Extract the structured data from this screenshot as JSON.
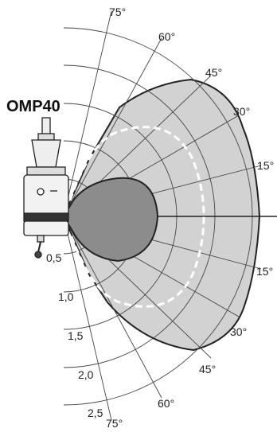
{
  "title": "OMP40",
  "angle_labels": {
    "upper": [
      "75°",
      "60°",
      "45°",
      "30°",
      "15°"
    ],
    "lower": [
      "15°",
      "30°",
      "45°",
      "60°",
      "75°"
    ]
  },
  "range_labels": [
    "0,5",
    "1,0",
    "1,5",
    "2,0",
    "2,5"
  ],
  "colors": {
    "outer_envelope": "#d2d2d2",
    "inner_envelope": "#8c8c8c",
    "grid": "#444444",
    "dashed_curve": "#ffffff"
  }
}
